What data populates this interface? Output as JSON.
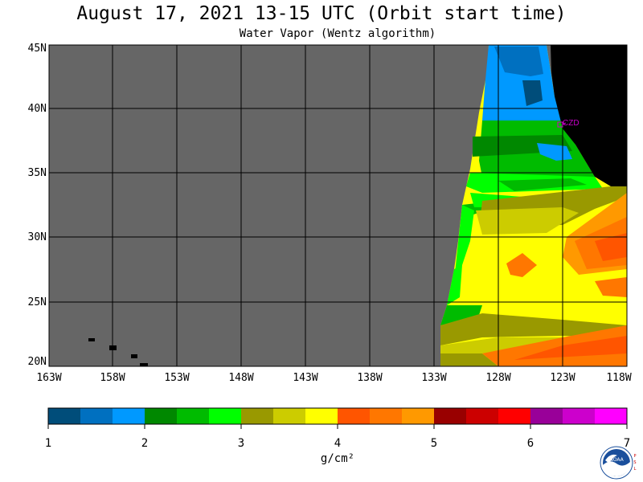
{
  "header": {
    "title": "August 17, 2021  13-15 UTC  (Orbit start time)",
    "subtitle": "Water Vapor (Wentz algorithm)"
  },
  "map": {
    "lat_labels": [
      "45N",
      "40N",
      "35N",
      "30N",
      "25N",
      "20N"
    ],
    "lon_labels": [
      "163W",
      "158W",
      "153W",
      "148W",
      "143W",
      "138W",
      "133W",
      "128W",
      "123W",
      "118W"
    ],
    "station_label": "CZD",
    "colors": {
      "no_data": "#666666",
      "land": "#000000",
      "grid": "#000000",
      "station": "#cc00cc"
    }
  },
  "colorbar": {
    "tick_labels": [
      "1",
      "2",
      "3",
      "4",
      "5",
      "6",
      "7"
    ],
    "units": "g/cm²",
    "colors": [
      "#004d7a",
      "#0070c0",
      "#0099ff",
      "#008800",
      "#00bb00",
      "#00ff00",
      "#999900",
      "#cccc00",
      "#ffff00",
      "#ff5500",
      "#ff7700",
      "#ff9900",
      "#990000",
      "#cc0000",
      "#ff0000",
      "#990099",
      "#cc00cc",
      "#ff00ff"
    ]
  },
  "logo": {
    "name": "NOAA",
    "side_text": "PSL"
  }
}
